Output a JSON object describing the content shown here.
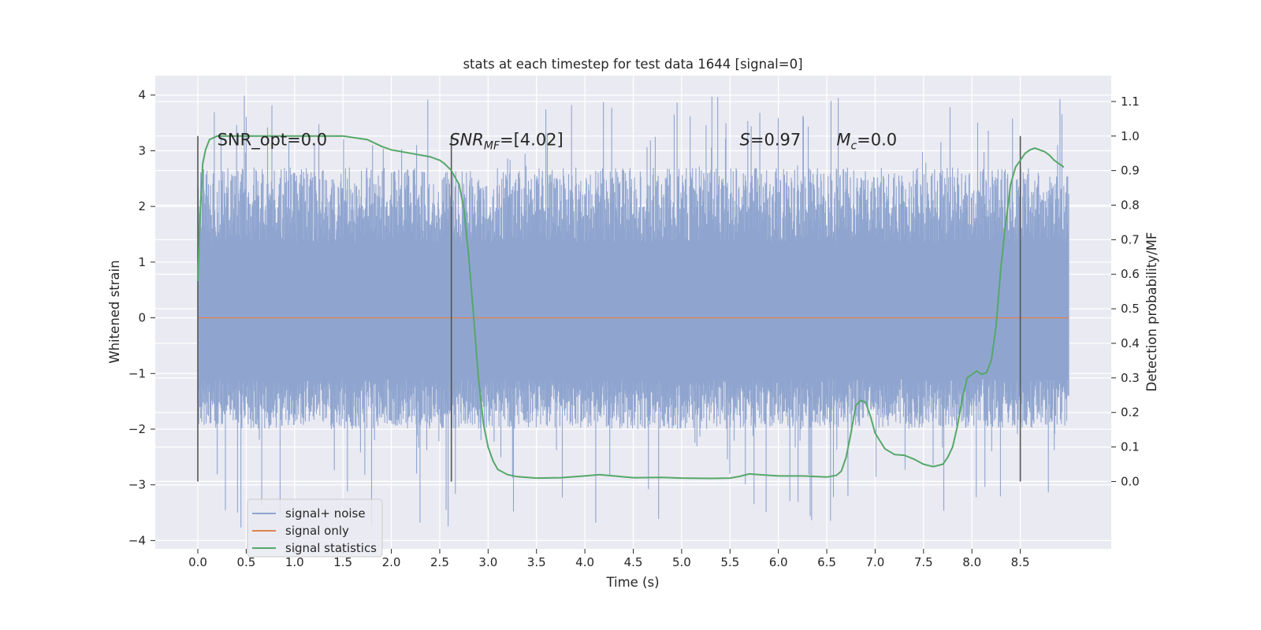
{
  "chart_data": {
    "type": "line",
    "title": "stats at each timestep for test data 1644 [signal=0]",
    "xlabel": "Time (s)",
    "ylabel": "Whitened strain",
    "y2label": "Detection probability/MF",
    "xlim": [
      -0.44,
      9.44
    ],
    "ylim": [
      -4.15,
      4.35
    ],
    "y2lim": [
      -0.195,
      1.175
    ],
    "xticks": [
      "0.0",
      "0.5",
      "1.0",
      "1.5",
      "2.0",
      "2.5",
      "3.0",
      "3.5",
      "4.0",
      "4.5",
      "5.0",
      "5.5",
      "6.0",
      "6.5",
      "7.0",
      "7.5",
      "8.0",
      "8.5"
    ],
    "yticks": [
      "4",
      "3",
      "2",
      "1",
      "0",
      "−1",
      "−2",
      "−3",
      "−4"
    ],
    "y2ticks": [
      "1.1",
      "1.0",
      "0.9",
      "0.8",
      "0.7",
      "0.6",
      "0.5",
      "0.4",
      "0.3",
      "0.2",
      "0.1",
      "0.0"
    ],
    "grid": true,
    "legend_position": "lower-left",
    "colors": {
      "background": "#eaeaf2",
      "grid": "#ffffff",
      "noise": "#8fa5cf",
      "signal": "#dd8452",
      "statistics": "#55a868",
      "markers": "#555555"
    },
    "annotations": [
      {
        "text": "SNR_opt=0.0",
        "x": 0.2,
        "y": 3.1
      },
      {
        "text": "SNRMF=[4.02]",
        "x": 2.6,
        "y": 3.1,
        "italic_prefix": "SNR",
        "subscript": "MF",
        "suffix": "=[4.02]"
      },
      {
        "text": "S=0.97",
        "x": 5.6,
        "y": 3.1,
        "italic_prefix": "S",
        "subscript": "",
        "suffix": "=0.97"
      },
      {
        "text": "Mc=0.0",
        "x": 6.6,
        "y": 3.1,
        "italic_prefix": "M",
        "subscript": "c",
        "suffix": "=0.0"
      }
    ],
    "vertical_markers": [
      0.0,
      2.62,
      8.5
    ],
    "noise_envelope": {
      "x_range": [
        0.0,
        9.0
      ],
      "core_band": [
        -1.1,
        1.35
      ],
      "typical_peak": [
        -2.0,
        2.7
      ],
      "extreme_max": 4.0,
      "extreme_min": -3.8
    },
    "series": [
      {
        "name": "signal+ noise",
        "axis": "left",
        "description_values": "noise"
      },
      {
        "name": "signal only",
        "axis": "left",
        "x": [
          0.0,
          9.0
        ],
        "values": [
          0.0,
          0.0
        ]
      },
      {
        "name": "signal statistics",
        "axis": "right",
        "x": [
          0.0,
          0.02,
          0.05,
          0.08,
          0.12,
          0.2,
          0.3,
          0.5,
          0.75,
          1.0,
          1.25,
          1.5,
          1.75,
          1.9,
          2.0,
          2.2,
          2.4,
          2.5,
          2.55,
          2.62,
          2.7,
          2.75,
          2.8,
          2.85,
          2.9,
          2.95,
          3.0,
          3.05,
          3.1,
          3.2,
          3.3,
          3.5,
          3.75,
          4.0,
          4.15,
          4.3,
          4.5,
          4.8,
          5.0,
          5.3,
          5.5,
          5.6,
          5.7,
          5.8,
          6.0,
          6.25,
          6.5,
          6.6,
          6.65,
          6.7,
          6.75,
          6.8,
          6.85,
          6.9,
          6.95,
          7.0,
          7.1,
          7.2,
          7.3,
          7.4,
          7.5,
          7.6,
          7.7,
          7.75,
          7.8,
          7.85,
          7.9,
          7.95,
          8.0,
          8.05,
          8.1,
          8.15,
          8.2,
          8.25,
          8.3,
          8.35,
          8.4,
          8.45,
          8.5,
          8.55,
          8.6,
          8.65,
          8.7,
          8.75,
          8.8,
          8.85,
          8.9,
          8.95
        ],
        "values": [
          0.58,
          0.75,
          0.92,
          0.96,
          0.99,
          1.0,
          1.0,
          1.0,
          1.0,
          1.0,
          1.0,
          1.0,
          0.99,
          0.97,
          0.96,
          0.95,
          0.94,
          0.93,
          0.92,
          0.9,
          0.86,
          0.79,
          0.65,
          0.48,
          0.3,
          0.17,
          0.1,
          0.06,
          0.035,
          0.02,
          0.014,
          0.01,
          0.011,
          0.016,
          0.02,
          0.016,
          0.011,
          0.012,
          0.01,
          0.009,
          0.01,
          0.015,
          0.022,
          0.02,
          0.016,
          0.016,
          0.013,
          0.018,
          0.03,
          0.07,
          0.14,
          0.22,
          0.235,
          0.23,
          0.19,
          0.14,
          0.095,
          0.078,
          0.076,
          0.065,
          0.05,
          0.043,
          0.05,
          0.07,
          0.1,
          0.16,
          0.24,
          0.3,
          0.31,
          0.32,
          0.31,
          0.315,
          0.35,
          0.45,
          0.62,
          0.75,
          0.86,
          0.91,
          0.93,
          0.95,
          0.96,
          0.965,
          0.96,
          0.955,
          0.945,
          0.93,
          0.92,
          0.91
        ]
      }
    ]
  }
}
